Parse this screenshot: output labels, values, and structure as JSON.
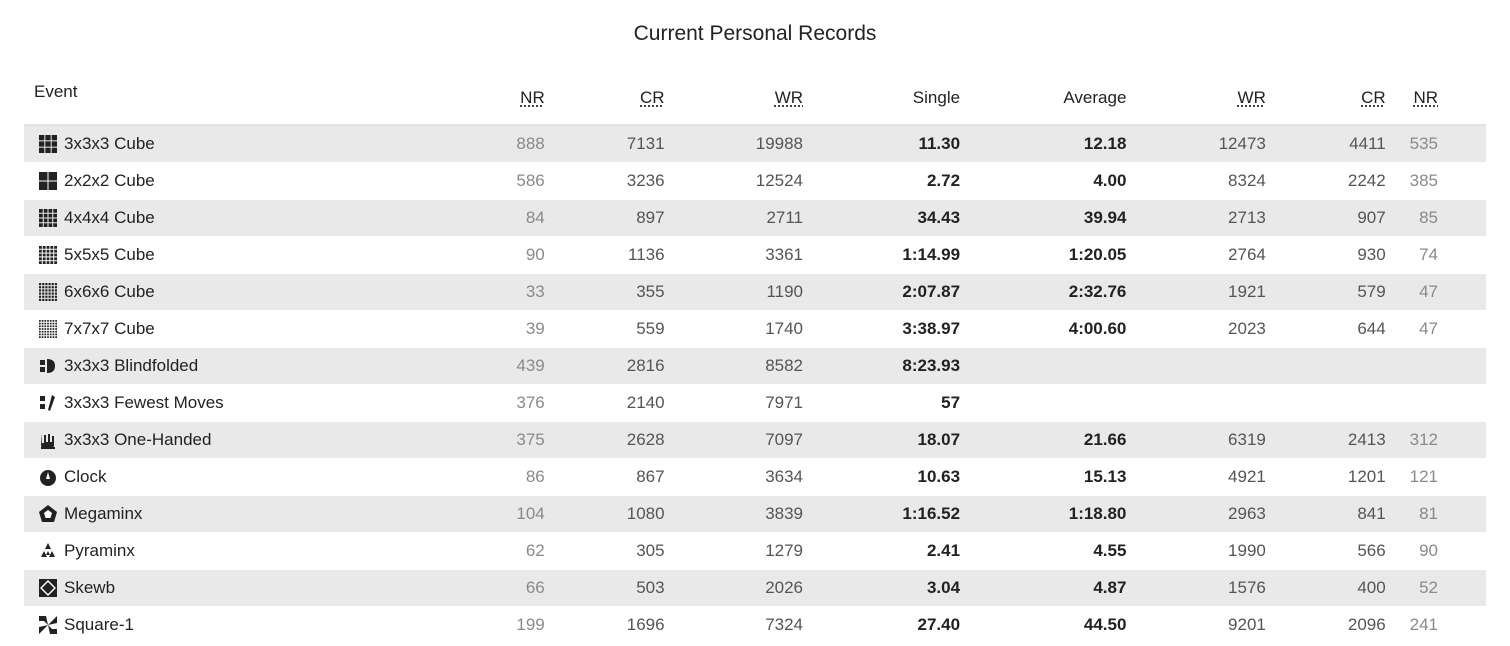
{
  "title": "Current Personal Records",
  "headers": {
    "event": "Event",
    "nr": "NR",
    "cr": "CR",
    "wr": "WR",
    "single": "Single",
    "average": "Average",
    "wr2": "WR",
    "cr2": "CR",
    "nr2": "NR"
  },
  "rows": [
    {
      "event": "3x3x3 Cube",
      "icon": "cube-333-icon",
      "s_nr": "888",
      "s_cr": "7131",
      "s_wr": "19988",
      "single": "11.30",
      "average": "12.18",
      "a_wr": "12473",
      "a_cr": "4411",
      "a_nr": "535"
    },
    {
      "event": "2x2x2 Cube",
      "icon": "cube-222-icon",
      "s_nr": "586",
      "s_cr": "3236",
      "s_wr": "12524",
      "single": "2.72",
      "average": "4.00",
      "a_wr": "8324",
      "a_cr": "2242",
      "a_nr": "385"
    },
    {
      "event": "4x4x4 Cube",
      "icon": "cube-444-icon",
      "s_nr": "84",
      "s_cr": "897",
      "s_wr": "2711",
      "single": "34.43",
      "average": "39.94",
      "a_wr": "2713",
      "a_cr": "907",
      "a_nr": "85"
    },
    {
      "event": "5x5x5 Cube",
      "icon": "cube-555-icon",
      "s_nr": "90",
      "s_cr": "1136",
      "s_wr": "3361",
      "single": "1:14.99",
      "average": "1:20.05",
      "a_wr": "2764",
      "a_cr": "930",
      "a_nr": "74"
    },
    {
      "event": "6x6x6 Cube",
      "icon": "cube-666-icon",
      "s_nr": "33",
      "s_cr": "355",
      "s_wr": "1190",
      "single": "2:07.87",
      "average": "2:32.76",
      "a_wr": "1921",
      "a_cr": "579",
      "a_nr": "47"
    },
    {
      "event": "7x7x7 Cube",
      "icon": "cube-777-icon",
      "s_nr": "39",
      "s_cr": "559",
      "s_wr": "1740",
      "single": "3:38.97",
      "average": "4:00.60",
      "a_wr": "2023",
      "a_cr": "644",
      "a_nr": "47"
    },
    {
      "event": "3x3x3 Blindfolded",
      "icon": "blindfolded-icon",
      "s_nr": "439",
      "s_cr": "2816",
      "s_wr": "8582",
      "single": "8:23.93",
      "average": "",
      "a_wr": "",
      "a_cr": "",
      "a_nr": ""
    },
    {
      "event": "3x3x3 Fewest Moves",
      "icon": "fewest-moves-icon",
      "s_nr": "376",
      "s_cr": "2140",
      "s_wr": "7971",
      "single": "57",
      "average": "",
      "a_wr": "",
      "a_cr": "",
      "a_nr": ""
    },
    {
      "event": "3x3x3 One-Handed",
      "icon": "one-handed-icon",
      "s_nr": "375",
      "s_cr": "2628",
      "s_wr": "7097",
      "single": "18.07",
      "average": "21.66",
      "a_wr": "6319",
      "a_cr": "2413",
      "a_nr": "312"
    },
    {
      "event": "Clock",
      "icon": "clock-icon",
      "s_nr": "86",
      "s_cr": "867",
      "s_wr": "3634",
      "single": "10.63",
      "average": "15.13",
      "a_wr": "4921",
      "a_cr": "1201",
      "a_nr": "121"
    },
    {
      "event": "Megaminx",
      "icon": "megaminx-icon",
      "s_nr": "104",
      "s_cr": "1080",
      "s_wr": "3839",
      "single": "1:16.52",
      "average": "1:18.80",
      "a_wr": "2963",
      "a_cr": "841",
      "a_nr": "81"
    },
    {
      "event": "Pyraminx",
      "icon": "pyraminx-icon",
      "s_nr": "62",
      "s_cr": "305",
      "s_wr": "1279",
      "single": "2.41",
      "average": "4.55",
      "a_wr": "1990",
      "a_cr": "566",
      "a_nr": "90"
    },
    {
      "event": "Skewb",
      "icon": "skewb-icon",
      "s_nr": "66",
      "s_cr": "503",
      "s_wr": "2026",
      "single": "3.04",
      "average": "4.87",
      "a_wr": "1576",
      "a_cr": "400",
      "a_nr": "52"
    },
    {
      "event": "Square-1",
      "icon": "square-1-icon",
      "s_nr": "199",
      "s_cr": "1696",
      "s_wr": "7324",
      "single": "27.40",
      "average": "44.50",
      "a_wr": "9201",
      "a_cr": "2096",
      "a_nr": "241"
    }
  ]
}
